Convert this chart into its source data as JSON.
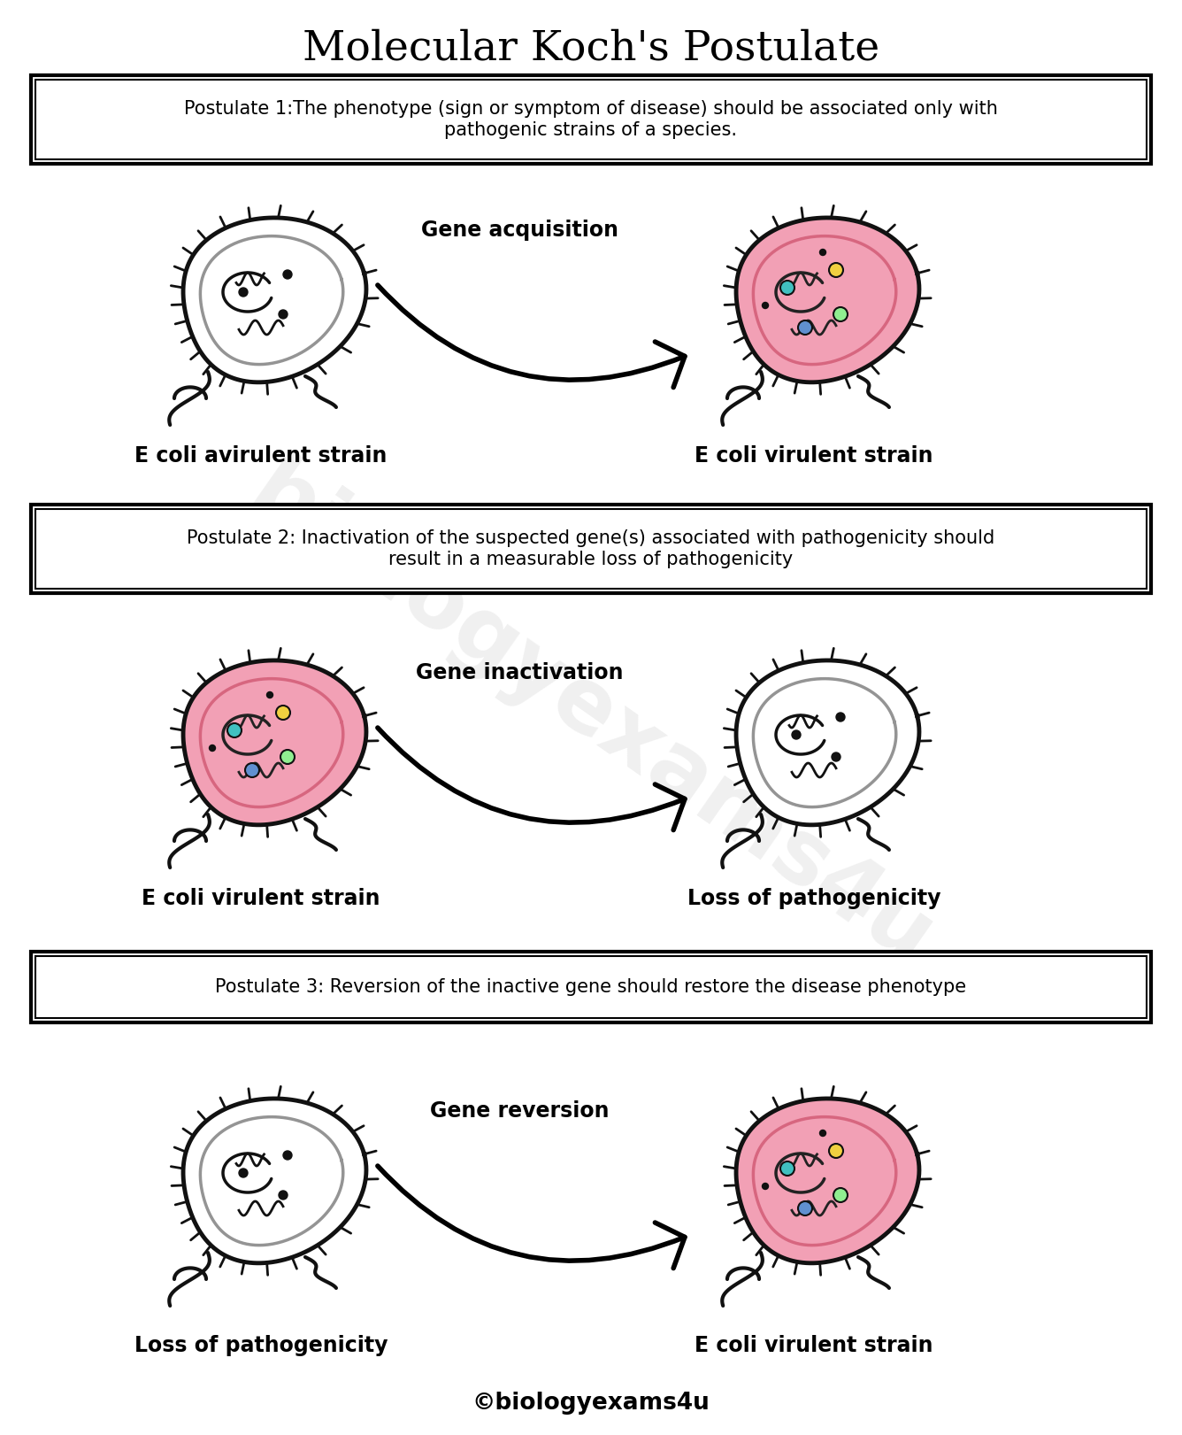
{
  "title": "Molecular Koch's Postulate",
  "title_fontsize": 34,
  "background_color": "#ffffff",
  "postulate1": "Postulate 1:The phenotype (sign or symptom of disease) should be associated only with\npathogenic strains of a species.",
  "postulate2": "Postulate 2: Inactivation of the suspected gene(s) associated with pathogenicity should\nresult in a measurable loss of pathogenicity",
  "postulate3": "Postulate 3: Reversion of the inactive gene should restore the disease phenotype",
  "postulate_fontsize": 15,
  "label1_left": "E coli avirulent strain",
  "label1_right": "E coli virulent strain",
  "label2_left": "E coli virulent strain",
  "label2_right": "Loss of pathogenicity",
  "label3_left": "Loss of pathogenicity",
  "label3_right": "E coli virulent strain",
  "arrow1_label": "Gene acquisition",
  "arrow2_label": "Gene inactivation",
  "arrow3_label": "Gene reversion",
  "label_fontsize": 17,
  "arrow_fontsize": 17,
  "watermark": "biologyexams4u",
  "footer": "©biologyexams4u",
  "footer_fontsize": 19,
  "pink_fill": "#F2A0B5",
  "pink_inner": "#D4607A",
  "white_fill": "#ffffff",
  "outline_color": "#111111",
  "dot_green": "#90EE90",
  "dot_teal": "#40C0C0",
  "dot_yellow": "#F0D040",
  "dot_blue": "#6090D0",
  "flagella_color": "#111111"
}
